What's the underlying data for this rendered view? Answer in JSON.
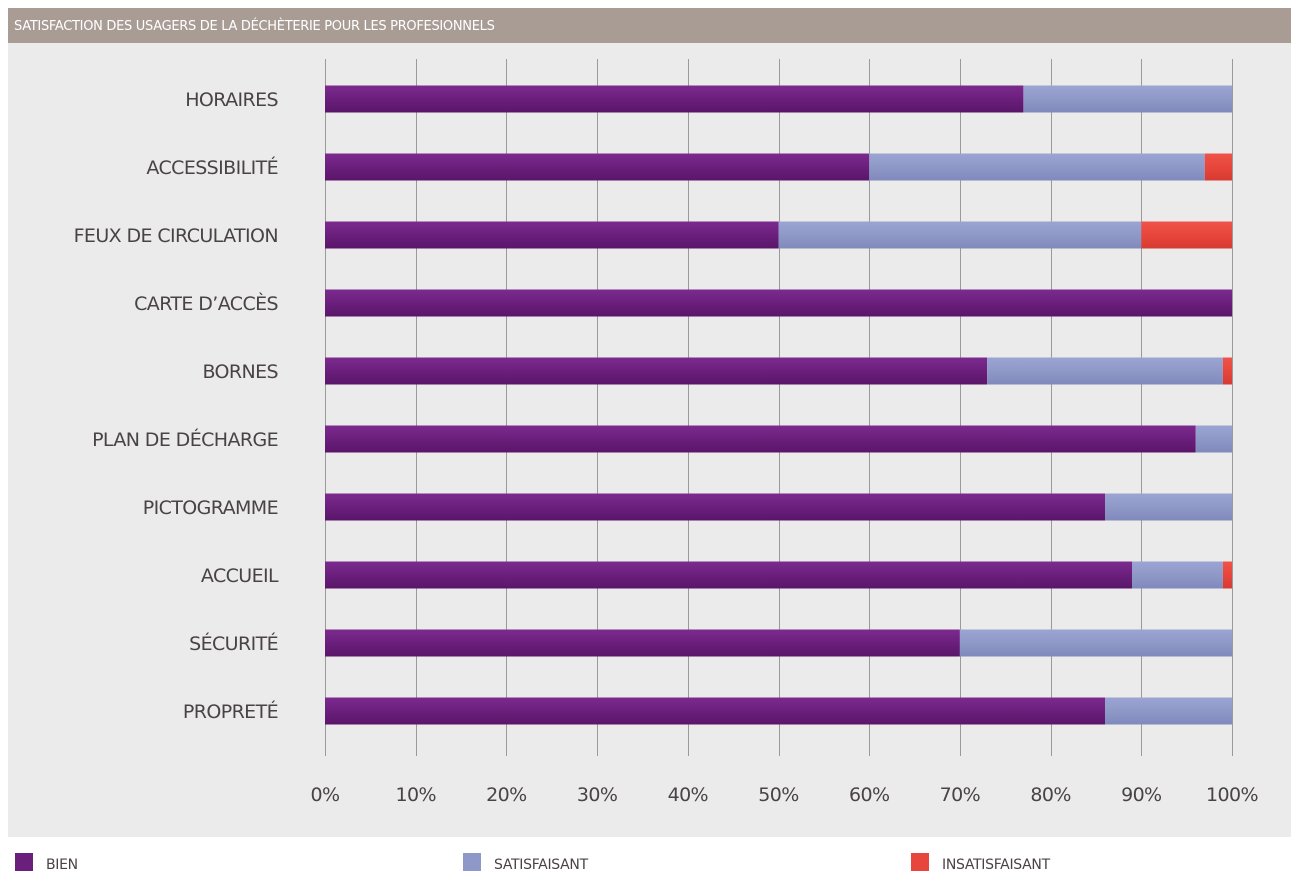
{
  "title": "SATISFACTION DES USAGERS DE LA DÉCHÈTERIE POUR LES PROFESIONNELS",
  "colors": {
    "bien": "#6b1f7c",
    "satisfaisant": "#8f99c8",
    "insatisfaisant": "#e8463c",
    "header": "#a89c95",
    "plot_background": "#ebebeb",
    "gridline": "#9a9a9a",
    "text": "#4a4345"
  },
  "chart_data": {
    "type": "bar",
    "orientation": "horizontal",
    "stacked": true,
    "title": "SATISFACTION DES USAGERS DE LA DÉCHÈTERIE POUR LES PROFESIONNELS",
    "categories": [
      "HORAIRES",
      "ACCESSIBILITÉ",
      "FEUX DE CIRCULATION",
      "CARTE D’ACCÈS",
      "BORNES",
      "PLAN DE DÉCHARGE",
      "PICTOGRAMME",
      "ACCUEIL",
      "SÉCURITÉ",
      "PROPRETÉ"
    ],
    "series": [
      {
        "name": "BIEN",
        "color": "#6b1f7c",
        "values": [
          77,
          60,
          50,
          100,
          73,
          96,
          86,
          89,
          70,
          86
        ]
      },
      {
        "name": "SATISFAISANT",
        "color": "#8f99c8",
        "values": [
          23,
          37,
          40,
          0,
          26,
          4,
          14,
          10,
          30,
          14
        ]
      },
      {
        "name": "INSATISFAISANT",
        "color": "#e8463c",
        "values": [
          0,
          3,
          10,
          0,
          1,
          0,
          0,
          1,
          0,
          0
        ]
      }
    ],
    "xlim": [
      0,
      100
    ],
    "xticks": [
      "0%",
      "10%",
      "20%",
      "30%",
      "40%",
      "50%",
      "60%",
      "70%",
      "80%",
      "90%",
      "100%"
    ],
    "grid": true,
    "legend_position": "bottom"
  }
}
